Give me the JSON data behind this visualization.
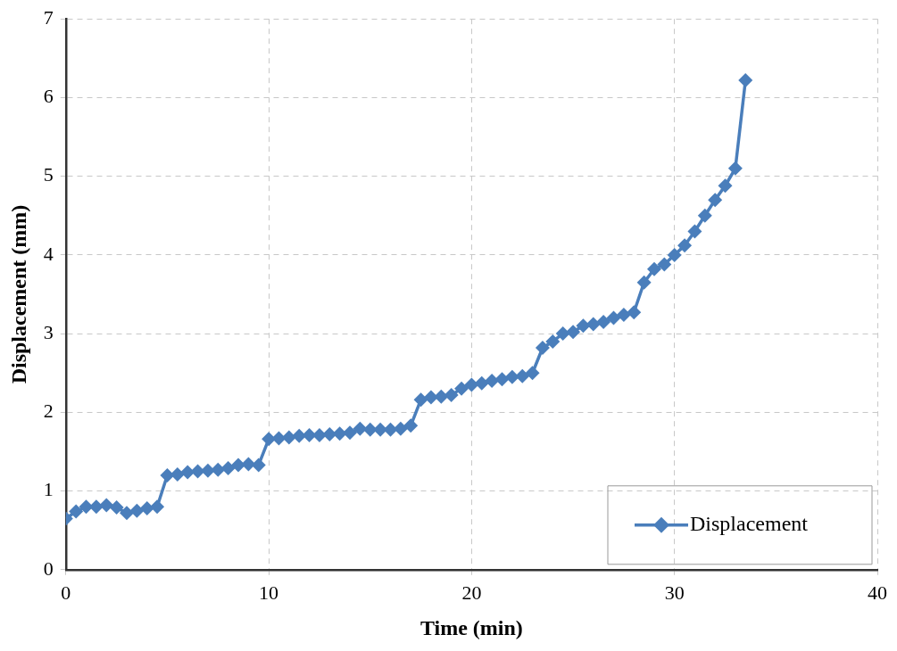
{
  "chart_data": {
    "type": "line",
    "xlabel": "Time (min)",
    "ylabel": "Displacement (mm)",
    "xlim": [
      0,
      40
    ],
    "xticks": [
      0,
      10,
      20,
      30,
      40
    ],
    "ylim": [
      0,
      7
    ],
    "yticks": [
      0,
      1,
      2,
      3,
      4,
      5,
      6,
      7
    ],
    "grid": true,
    "legend": "bottom right",
    "marker": "diamond",
    "line_style": "solid",
    "series": [
      {
        "name": "Displacement",
        "color": "#4a7ebb",
        "x": [
          0,
          0.5,
          1,
          1.5,
          2,
          2.5,
          3,
          3.5,
          4,
          4.5,
          5,
          5.5,
          6,
          6.5,
          7,
          7.5,
          8,
          8.5,
          9,
          9.5,
          10,
          10.5,
          11,
          11.5,
          12,
          12.5,
          13,
          13.5,
          14,
          14.5,
          15,
          15.5,
          16,
          16.5,
          17,
          17.5,
          18,
          18.5,
          19,
          19.5,
          20,
          20.5,
          21,
          21.5,
          22,
          22.5,
          23,
          23.5,
          24,
          24.5,
          25,
          25.5,
          26,
          26.5,
          27,
          27.5,
          28,
          28.5,
          29,
          29.5,
          30,
          30.5,
          31,
          31.5,
          32,
          32.5,
          33,
          33.5
        ],
        "values": [
          0.65,
          0.74,
          0.8,
          0.8,
          0.82,
          0.79,
          0.72,
          0.75,
          0.78,
          0.8,
          1.2,
          1.21,
          1.24,
          1.25,
          1.26,
          1.27,
          1.29,
          1.33,
          1.34,
          1.33,
          1.66,
          1.67,
          1.68,
          1.7,
          1.71,
          1.71,
          1.72,
          1.73,
          1.74,
          1.79,
          1.78,
          1.78,
          1.78,
          1.79,
          1.83,
          2.16,
          2.19,
          2.2,
          2.22,
          2.3,
          2.35,
          2.37,
          2.4,
          2.42,
          2.45,
          2.46,
          2.5,
          2.82,
          2.9,
          3.0,
          3.02,
          3.1,
          3.12,
          3.15,
          3.2,
          3.24,
          3.27,
          3.65,
          3.82,
          3.88,
          4.0,
          4.12,
          4.3,
          4.5,
          4.7,
          4.88,
          5.1,
          6.22
        ]
      }
    ]
  }
}
